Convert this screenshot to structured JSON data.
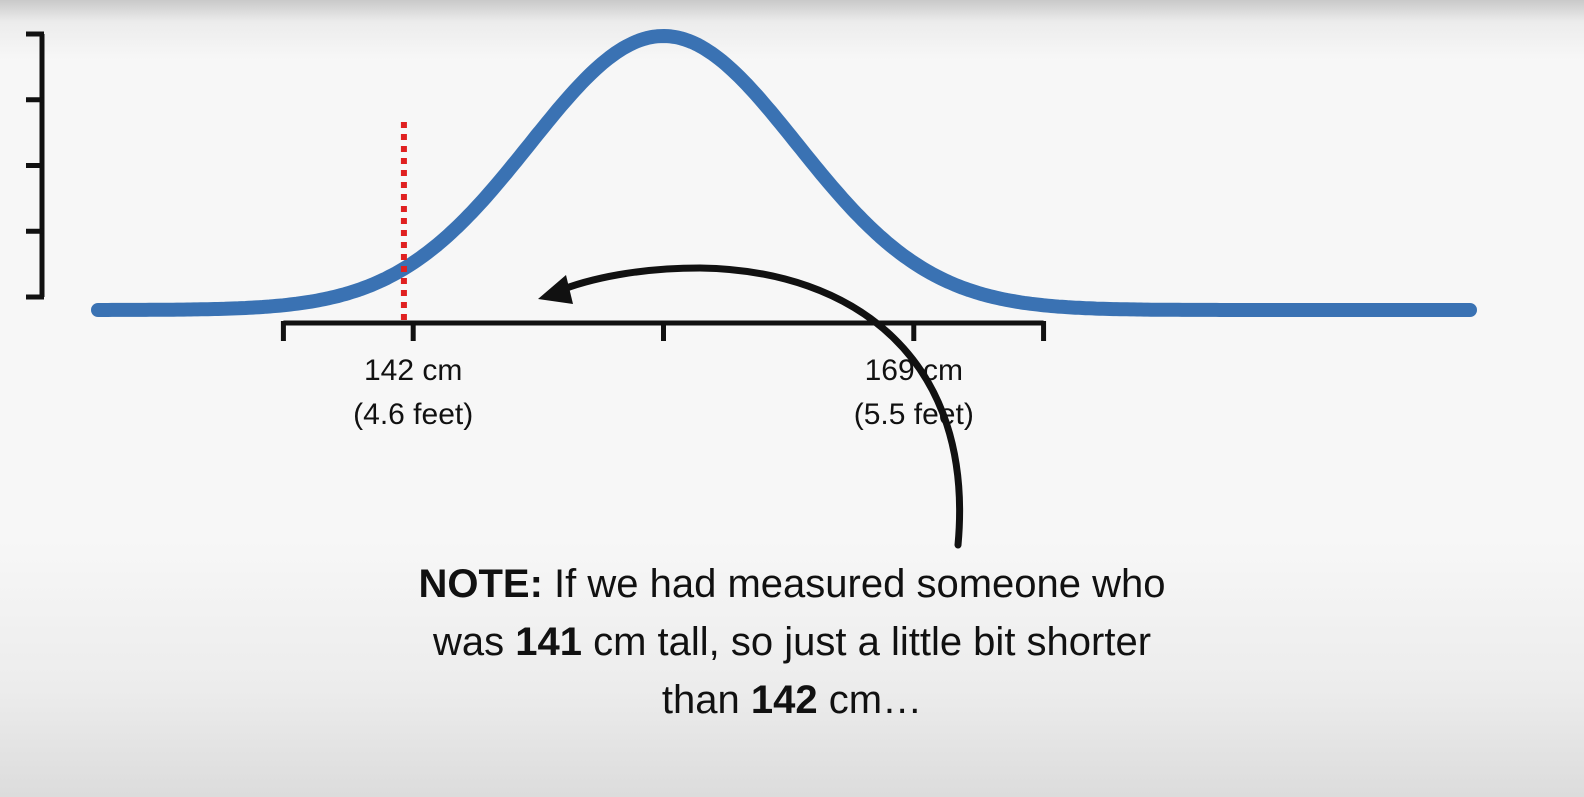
{
  "chart_data": {
    "type": "line",
    "title": "",
    "xlabel": "",
    "ylabel": "",
    "distribution": {
      "kind": "normal",
      "mean": 155.5,
      "sd": 7.2
    },
    "xlim": [
      125,
      199
    ],
    "xticks": [
      135,
      142,
      155.5,
      169,
      176
    ],
    "xtick_labels": [
      {
        "x": 142,
        "line1": "142 cm",
        "line2": "(4.6 feet)"
      },
      {
        "x": 169,
        "line1": "169 cm",
        "line2": "(5.5 feet)"
      }
    ],
    "y_axis_ticks": 5,
    "marker": {
      "x": 141.5,
      "style": "dotted",
      "color": "#e02020"
    },
    "series": [
      {
        "color": "#3a72b3"
      }
    ],
    "grid": false
  },
  "note": {
    "line1_bold": "NOTE:",
    "line1_rest": " If we had measured someone who",
    "line2_pre": "was ",
    "line2_bold": "141",
    "line2_rest": " cm tall, so just a little bit shorter",
    "line3_pre": "than ",
    "line3_bold": "142",
    "line3_rest": " cm…"
  }
}
